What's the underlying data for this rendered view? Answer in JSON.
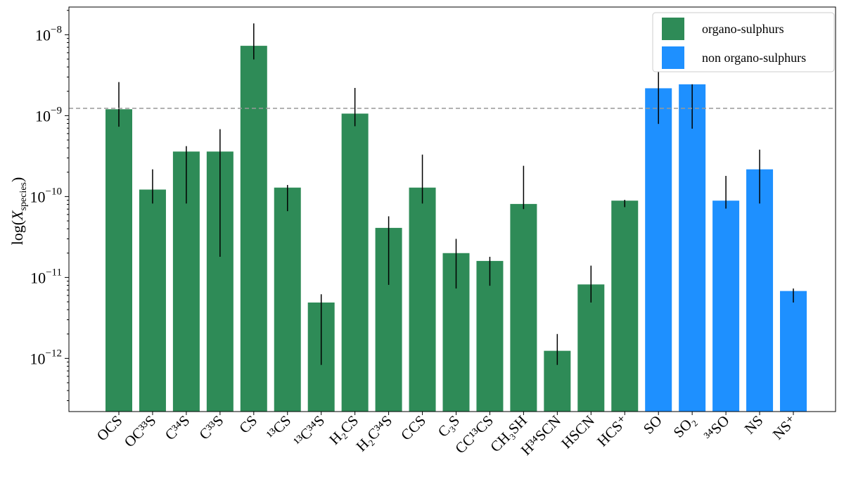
{
  "chart_data": {
    "type": "bar",
    "yscale": "log",
    "ylim": [
      2.2e-13,
      2.2e-08
    ],
    "ylabel": {
      "prefix": "log(",
      "var": "X",
      "sub": "species",
      "suffix": ")"
    },
    "yticks": [
      {
        "value": 1e-08,
        "base": "10",
        "exp": "−8"
      },
      {
        "value": 1e-09,
        "base": "10",
        "exp": "−9"
      },
      {
        "value": 1e-10,
        "base": "10",
        "exp": "−10"
      },
      {
        "value": 1e-11,
        "base": "10",
        "exp": "−11"
      },
      {
        "value": 1e-12,
        "base": "10",
        "exp": "−12"
      }
    ],
    "reference_line": {
      "value": 1.23e-09,
      "style": "dashed",
      "color": "#999999"
    },
    "grid": false,
    "legend": {
      "placement": "top-right",
      "entries": [
        {
          "label": "organo-sulphurs",
          "color": "#2E8B57"
        },
        {
          "label": "non organo-sulphurs",
          "color": "#1E90FF"
        }
      ]
    },
    "bars": [
      {
        "label": "OCS",
        "value": 1.2e-09,
        "err_low": 7.3e-10,
        "err_high": 2.6e-09,
        "group": 0
      },
      {
        "label": "OC³³S",
        "value": 1.22e-10,
        "err_low": 8.2e-11,
        "err_high": 2.17e-10,
        "group": 0
      },
      {
        "label": "C³⁴S",
        "value": 3.6e-10,
        "err_low": 8.2e-11,
        "err_high": 4.2e-10,
        "group": 0
      },
      {
        "label": "C³³S",
        "value": 3.6e-10,
        "err_low": 1.8e-11,
        "err_high": 6.8e-10,
        "group": 0
      },
      {
        "label": "CS",
        "value": 7.3e-09,
        "err_low": 4.95e-09,
        "err_high": 1.38e-08,
        "group": 0
      },
      {
        "label": "¹³CS",
        "value": 1.29e-10,
        "err_low": 6.6e-11,
        "err_high": 1.39e-10,
        "group": 0
      },
      {
        "label": "¹³C³⁴S",
        "value": 4.9e-12,
        "err_low": 8.3e-13,
        "err_high": 6.2e-12,
        "group": 0
      },
      {
        "label": "H₂CS",
        "value": 1.06e-09,
        "err_low": 7.4e-10,
        "err_high": 2.2e-09,
        "group": 0
      },
      {
        "label": "H₂C³⁴S",
        "value": 4.1e-11,
        "err_low": 8.1e-12,
        "err_high": 5.7e-11,
        "group": 0
      },
      {
        "label": "CCS",
        "value": 1.29e-10,
        "err_low": 8.2e-11,
        "err_high": 3.3e-10,
        "group": 0
      },
      {
        "label": "C₃S",
        "value": 2e-11,
        "err_low": 7.3e-12,
        "err_high": 3e-11,
        "group": 0
      },
      {
        "label": "CC¹³CS",
        "value": 1.6e-11,
        "err_low": 7.9e-12,
        "err_high": 1.8e-11,
        "group": 0
      },
      {
        "label": "CH₃SH",
        "value": 8.1e-11,
        "err_low": 7e-11,
        "err_high": 2.4e-10,
        "group": 0
      },
      {
        "label": "H³⁴SCN",
        "value": 1.24e-12,
        "err_low": 8.3e-13,
        "err_high": 2e-12,
        "group": 0
      },
      {
        "label": "HSCN",
        "value": 8.2e-12,
        "err_low": 4.9e-12,
        "err_high": 1.4e-11,
        "group": 0
      },
      {
        "label": "HCS⁺",
        "value": 8.9e-11,
        "err_low": 7.4e-11,
        "err_high": 9.1e-11,
        "group": 0
      },
      {
        "label": "SO",
        "value": 2.18e-09,
        "err_low": 7.9e-10,
        "err_high": 3.7e-09,
        "group": 1
      },
      {
        "label": "SO₂",
        "value": 2.44e-09,
        "err_low": 6.9e-10,
        "err_high": 2.44e-09,
        "group": 1
      },
      {
        "label": "³⁴SO",
        "value": 8.9e-11,
        "err_low": 7.1e-11,
        "err_high": 1.8e-10,
        "group": 1
      },
      {
        "label": "NS",
        "value": 2.17e-10,
        "err_low": 8.2e-11,
        "err_high": 3.8e-10,
        "group": 1
      },
      {
        "label": "NS⁺",
        "value": 6.8e-12,
        "err_low": 4.9e-12,
        "err_high": 7.3e-12,
        "group": 1
      }
    ]
  }
}
